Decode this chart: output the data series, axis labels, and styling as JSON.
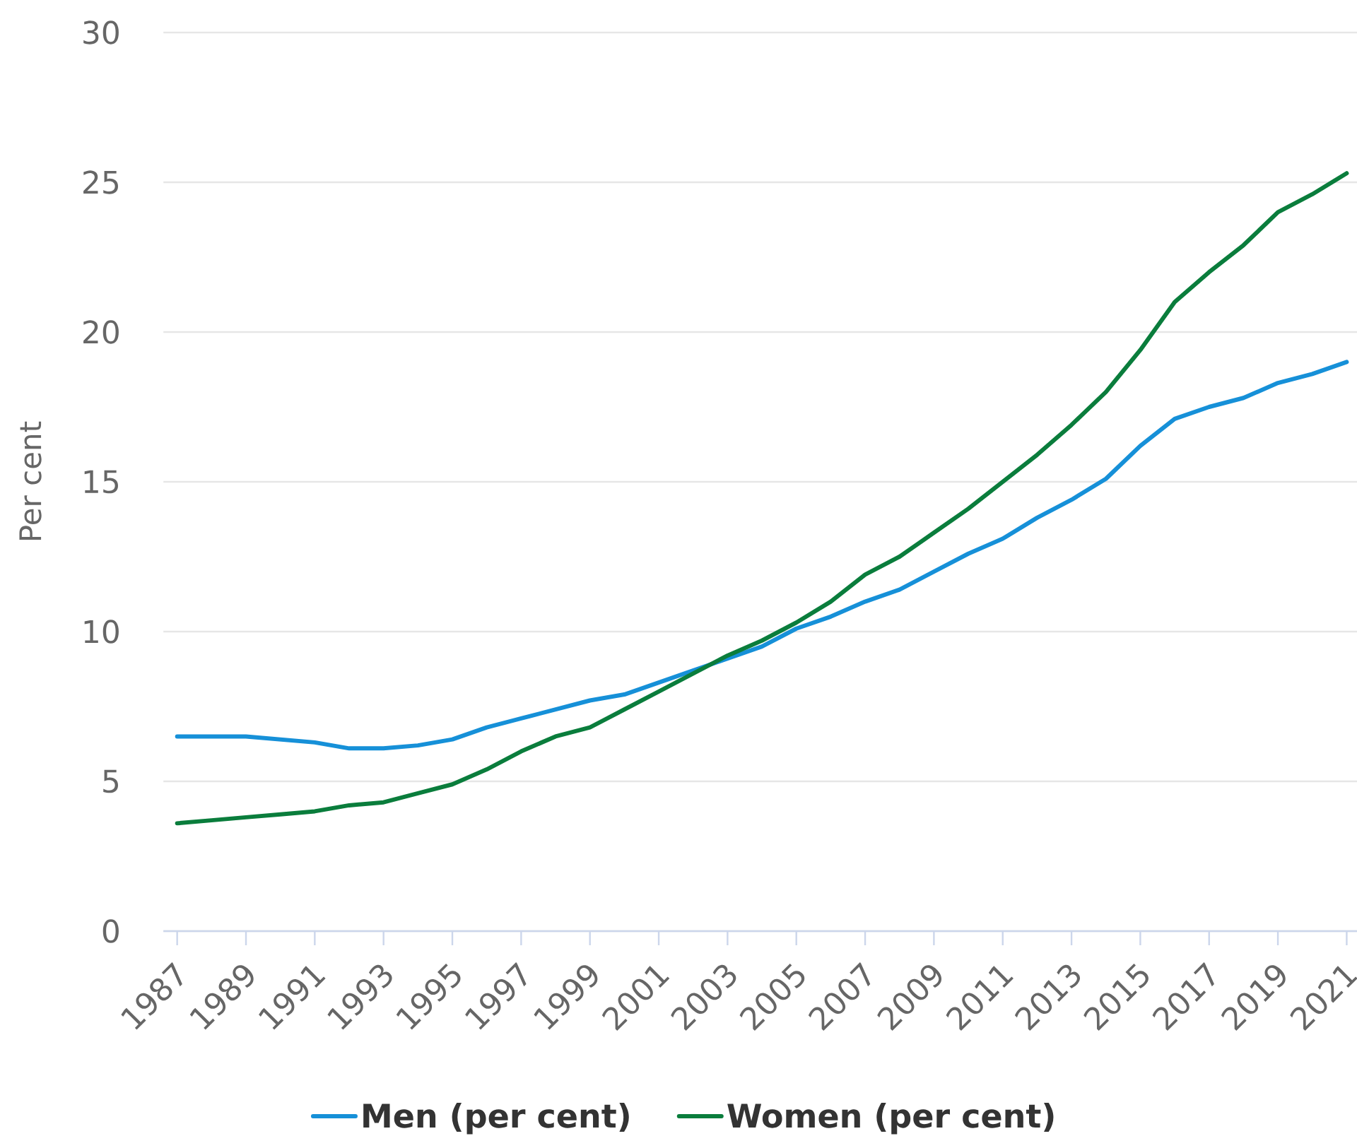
{
  "chart_data": {
    "type": "line",
    "ylabel": "Per cent",
    "x": [
      1987,
      1988,
      1989,
      1990,
      1991,
      1992,
      1993,
      1994,
      1995,
      1996,
      1997,
      1998,
      1999,
      2000,
      2001,
      2002,
      2003,
      2004,
      2005,
      2006,
      2007,
      2008,
      2009,
      2010,
      2011,
      2012,
      2013,
      2014,
      2015,
      2016,
      2017,
      2018,
      2019,
      2020,
      2021
    ],
    "series": [
      {
        "name": "Men (per cent)",
        "color": "#1690d8",
        "values": [
          6.5,
          6.5,
          6.5,
          6.4,
          6.3,
          6.1,
          6.1,
          6.2,
          6.4,
          6.8,
          7.1,
          7.4,
          7.7,
          7.9,
          8.3,
          8.7,
          9.1,
          9.5,
          10.1,
          10.5,
          11.0,
          11.4,
          12.0,
          12.6,
          13.1,
          13.8,
          14.4,
          15.1,
          16.2,
          17.1,
          17.5,
          17.8,
          18.3,
          18.6,
          19.0
        ]
      },
      {
        "name": "Women (per cent)",
        "color": "#0a7d3c",
        "values": [
          3.6,
          3.7,
          3.8,
          3.9,
          4.0,
          4.2,
          4.3,
          4.6,
          4.9,
          5.4,
          6.0,
          6.5,
          6.8,
          7.4,
          8.0,
          8.6,
          9.2,
          9.7,
          10.3,
          11.0,
          11.9,
          12.5,
          13.3,
          14.1,
          15.0,
          15.9,
          16.9,
          18.0,
          19.4,
          21.0,
          22.0,
          22.9,
          24.0,
          24.6,
          25.3
        ]
      }
    ],
    "xlim": [
      1986.6,
      2021.3
    ],
    "ylim": [
      0,
      30
    ],
    "xticks": [
      1987,
      1989,
      1991,
      1993,
      1995,
      1997,
      1999,
      2001,
      2003,
      2005,
      2007,
      2009,
      2011,
      2013,
      2015,
      2017,
      2019,
      2021
    ],
    "yticks": [
      0,
      5,
      10,
      15,
      20,
      25,
      30
    ],
    "grid": "y",
    "legend": "bottom",
    "marker": "none",
    "line_style": "solid"
  }
}
